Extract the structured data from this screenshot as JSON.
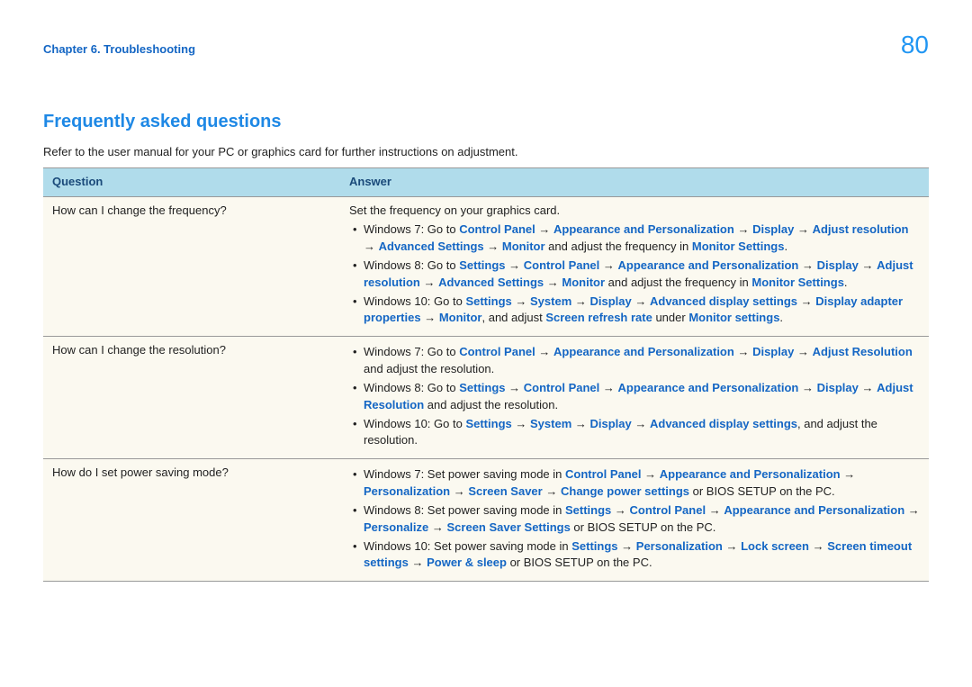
{
  "header": {
    "chapter": "Chapter 6. Troubleshooting",
    "page": "80"
  },
  "title": "Frequently asked questions",
  "intro": "Refer to the user manual for your PC or graphics card for further instructions on adjustment.",
  "table": {
    "col_q": "Question",
    "col_a": "Answer",
    "rows": [
      {
        "q": "How can I change the frequency?",
        "lead": "Set the frequency on your graphics card.",
        "items": [
          [
            {
              "t": "Windows 7: Go to "
            },
            {
              "b": "Control Panel"
            },
            {
              "a": true
            },
            {
              "b": "Appearance and Personalization"
            },
            {
              "a": true
            },
            {
              "b": "Display"
            },
            {
              "a": true
            },
            {
              "b": "Adjust resolution"
            },
            {
              "a": true
            },
            {
              "b": "Advanced Settings"
            },
            {
              "a": true
            },
            {
              "b": "Monitor"
            },
            {
              "t": " and adjust the frequency in "
            },
            {
              "b": "Monitor Settings"
            },
            {
              "t": "."
            }
          ],
          [
            {
              "t": "Windows 8: Go to "
            },
            {
              "b": "Settings"
            },
            {
              "a": true
            },
            {
              "b": "Control Panel"
            },
            {
              "a": true
            },
            {
              "b": "Appearance and Personalization"
            },
            {
              "a": true
            },
            {
              "b": "Display"
            },
            {
              "a": true
            },
            {
              "b": "Adjust resolution"
            },
            {
              "a": true
            },
            {
              "b": "Advanced Settings"
            },
            {
              "a": true
            },
            {
              "b": "Monitor"
            },
            {
              "t": " and adjust the frequency in "
            },
            {
              "b": "Monitor Settings"
            },
            {
              "t": "."
            }
          ],
          [
            {
              "t": "Windows 10: Go to "
            },
            {
              "b": "Settings"
            },
            {
              "a": true
            },
            {
              "b": "System"
            },
            {
              "a": true
            },
            {
              "b": "Display"
            },
            {
              "a": true
            },
            {
              "b": "Advanced display settings"
            },
            {
              "a": true
            },
            {
              "b": "Display adapter properties"
            },
            {
              "a": true
            },
            {
              "b": "Monitor"
            },
            {
              "t": ", and adjust "
            },
            {
              "b": "Screen refresh rate"
            },
            {
              "t": " under "
            },
            {
              "b": "Monitor settings"
            },
            {
              "t": "."
            }
          ]
        ]
      },
      {
        "q": "How can I change the resolution?",
        "lead": "",
        "items": [
          [
            {
              "t": "Windows 7: Go to "
            },
            {
              "b": "Control Panel"
            },
            {
              "a": true
            },
            {
              "b": "Appearance and Personalization"
            },
            {
              "a": true
            },
            {
              "b": "Display"
            },
            {
              "a": true
            },
            {
              "b": "Adjust Resolution"
            },
            {
              "t": " and adjust the resolution."
            }
          ],
          [
            {
              "t": "Windows 8: Go to "
            },
            {
              "b": "Settings"
            },
            {
              "a": true
            },
            {
              "b": "Control Panel"
            },
            {
              "a": true
            },
            {
              "b": "Appearance and Personalization"
            },
            {
              "a": true
            },
            {
              "b": "Display"
            },
            {
              "a": true
            },
            {
              "b": "Adjust Resolution"
            },
            {
              "t": " and adjust the resolution."
            }
          ],
          [
            {
              "t": "Windows 10: Go to "
            },
            {
              "b": "Settings"
            },
            {
              "a": true
            },
            {
              "b": "System"
            },
            {
              "a": true
            },
            {
              "b": "Display"
            },
            {
              "a": true
            },
            {
              "b": "Advanced display settings"
            },
            {
              "t": ", and adjust the resolution."
            }
          ]
        ]
      },
      {
        "q": "How do I set power saving mode?",
        "lead": "",
        "items": [
          [
            {
              "t": "Windows 7: Set power saving mode in "
            },
            {
              "b": "Control Panel"
            },
            {
              "a": true
            },
            {
              "b": "Appearance and Personalization"
            },
            {
              "a": true
            },
            {
              "b": "Personalization"
            },
            {
              "a": true
            },
            {
              "b": "Screen Saver"
            },
            {
              "a": true
            },
            {
              "b": "Change power settings"
            },
            {
              "t": " or BIOS SETUP on the PC."
            }
          ],
          [
            {
              "t": "Windows 8: Set power saving mode in "
            },
            {
              "b": "Settings"
            },
            {
              "a": true
            },
            {
              "b": "Control Panel"
            },
            {
              "a": true
            },
            {
              "b": "Appearance and Personalization"
            },
            {
              "a": true
            },
            {
              "b": "Personalize"
            },
            {
              "a": true
            },
            {
              "b": "Screen Saver Settings"
            },
            {
              "t": " or BIOS SETUP on the PC."
            }
          ],
          [
            {
              "t": "Windows 10: Set power saving mode in "
            },
            {
              "b": "Settings"
            },
            {
              "a": true
            },
            {
              "b": "Personalization"
            },
            {
              "a": true
            },
            {
              "b": "Lock screen"
            },
            {
              "a": true
            },
            {
              "b": "Screen timeout settings"
            },
            {
              "a": true
            },
            {
              "b": "Power & sleep"
            },
            {
              "t": " or BIOS SETUP on the PC."
            }
          ]
        ]
      }
    ]
  },
  "colors": {
    "header_bg": "#b0dceb",
    "row_bg": "#fbf9f0",
    "border": "#999999",
    "link": "#1466c4",
    "title": "#1e88e5",
    "pagenum": "#2196f3",
    "text": "#222222"
  }
}
